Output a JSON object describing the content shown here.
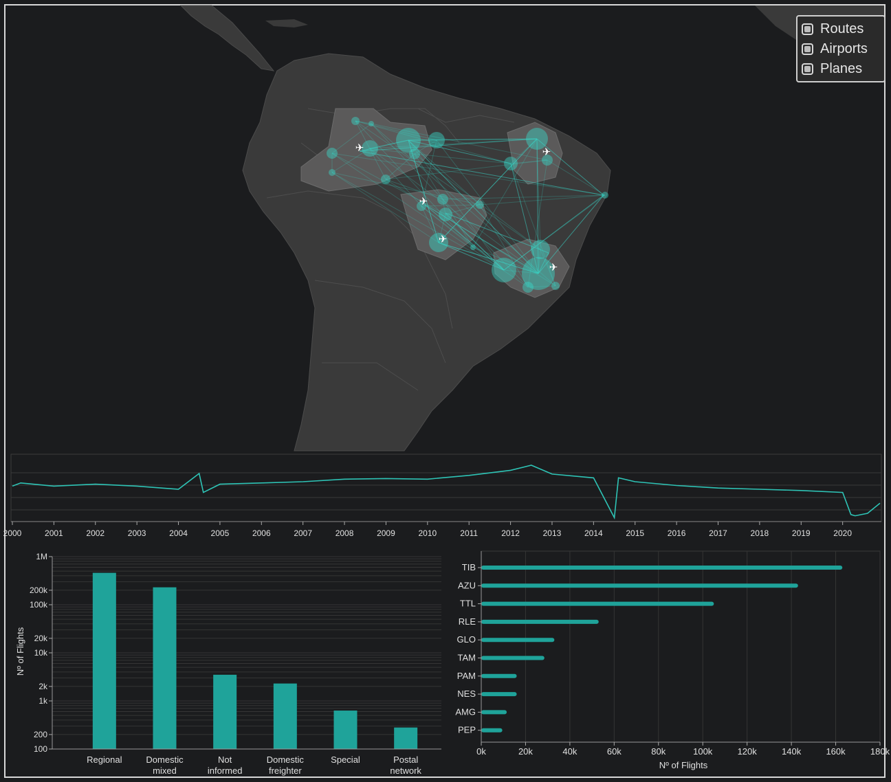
{
  "layer_toggles": [
    {
      "label": "Routes"
    },
    {
      "label": "Airports"
    },
    {
      "label": "Planes"
    }
  ],
  "colors": {
    "accent": "#2ec4b6",
    "background": "#1b1c1e",
    "land": "#3a3a3a",
    "highlight_land": "#5b5a5a"
  },
  "timeline": {
    "years": [
      "2000",
      "2001",
      "2002",
      "2003",
      "2004",
      "2005",
      "2006",
      "2007",
      "2008",
      "2009",
      "2010",
      "2011",
      "2012",
      "2013",
      "2014",
      "2015",
      "2016",
      "2017",
      "2018",
      "2019",
      "2020"
    ]
  },
  "chart_data": [
    {
      "type": "line",
      "x_range": [
        2000,
        2020.9
      ],
      "x": [
        2000,
        2000.2,
        2001,
        2002,
        2003,
        2004,
        2004.5,
        2004.6,
        2005,
        2006,
        2007,
        2008,
        2009,
        2010,
        2011,
        2012,
        2012.5,
        2013,
        2014,
        2014.5,
        2014.6,
        2015,
        2016,
        2017,
        2018,
        2019,
        2020,
        2020.2,
        2020.3,
        2020.6,
        2020.9
      ],
      "values": [
        0.55,
        0.6,
        0.55,
        0.58,
        0.55,
        0.5,
        0.75,
        0.45,
        0.58,
        0.6,
        0.62,
        0.66,
        0.67,
        0.66,
        0.72,
        0.8,
        0.88,
        0.74,
        0.68,
        0.05,
        0.68,
        0.62,
        0.56,
        0.52,
        0.5,
        0.48,
        0.45,
        0.1,
        0.08,
        0.12,
        0.28
      ]
    },
    {
      "type": "bar",
      "ylabel": "Nº of Flights",
      "yscale": "log",
      "ylim": [
        100,
        1000000
      ],
      "ytick_labels": [
        "100",
        "200",
        "1k",
        "2k",
        "10k",
        "20k",
        "100k",
        "200k",
        "1M"
      ],
      "yticks": [
        100,
        200,
        1000,
        2000,
        10000,
        20000,
        100000,
        200000,
        1000000
      ],
      "categories": [
        [
          "Regional"
        ],
        [
          "Domestic",
          "mixed"
        ],
        [
          "Not",
          "informed"
        ],
        [
          "Domestic",
          "freighter"
        ],
        [
          "Special"
        ],
        [
          "Postal",
          "network"
        ]
      ],
      "values": [
        460000,
        230000,
        3500,
        2300,
        630,
        280
      ]
    },
    {
      "type": "bar",
      "orientation": "horizontal",
      "xlabel": "Nº of Flights",
      "xlim": [
        0,
        180000
      ],
      "xtick_labels": [
        "0k",
        "20k",
        "40k",
        "60k",
        "80k",
        "100k",
        "120k",
        "140k",
        "160k",
        "180k"
      ],
      "xticks": [
        0,
        20000,
        40000,
        60000,
        80000,
        100000,
        120000,
        140000,
        160000,
        180000
      ],
      "categories": [
        "TIB",
        "AZU",
        "TTL",
        "RLE",
        "GLO",
        "TAM",
        "PAM",
        "NES",
        "AMG",
        "PEP"
      ],
      "values": [
        163000,
        143000,
        105000,
        53000,
        33000,
        28500,
        16000,
        16000,
        11500,
        9500
      ]
    }
  ]
}
